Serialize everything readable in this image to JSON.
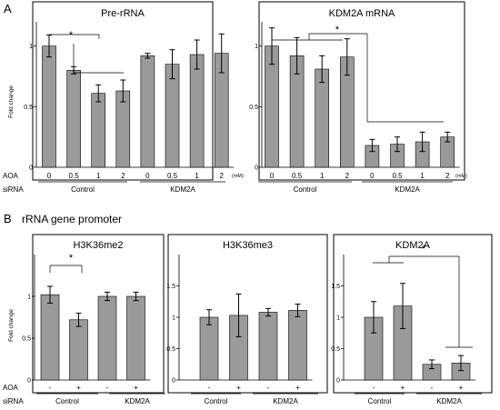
{
  "panel_labels": [
    "A",
    "B"
  ],
  "section_b_title": "rRNA gene promoter",
  "colors": {
    "bar_fill": "#9a9a9a",
    "axis": "#000000",
    "panel_border": "#000000"
  },
  "chart_data": [
    {
      "type": "bar",
      "title": "Pre-rRNA",
      "ylabel": "Fold change",
      "ylim": [
        0,
        1.2
      ],
      "yticks": [
        0,
        0.5,
        1
      ],
      "ytick_labels": [
        "0",
        "0.5",
        "1"
      ],
      "row_labels": [
        "AOA",
        "siRNA"
      ],
      "categories": [
        "0",
        "0.5",
        "1",
        "2",
        "0",
        "0.5",
        "1",
        "2"
      ],
      "unit_label": "(mM)",
      "groups": [
        {
          "label": "Control",
          "indices": [
            0,
            1,
            2,
            3
          ]
        },
        {
          "label": "KDM2A",
          "indices": [
            4,
            5,
            6,
            7
          ]
        }
      ],
      "values": [
        1.0,
        0.8,
        0.61,
        0.63,
        0.92,
        0.85,
        0.93,
        0.94
      ],
      "errors": [
        0.09,
        0.03,
        0.07,
        0.09,
        0.02,
        0.12,
        0.12,
        0.16
      ],
      "significance": [
        "*"
      ]
    },
    {
      "type": "bar",
      "title": "KDM2A mRNA",
      "ylim": [
        0,
        1.2
      ],
      "yticks": [
        0,
        0.5,
        1
      ],
      "ytick_labels": [
        "0",
        "0.5",
        "1"
      ],
      "categories": [
        "0",
        "0.5",
        "1",
        "2",
        "0",
        "0.5",
        "1",
        "2"
      ],
      "unit_label": "(mM)",
      "groups": [
        {
          "label": "Control",
          "indices": [
            0,
            1,
            2,
            3
          ]
        },
        {
          "label": "KDM2A",
          "indices": [
            4,
            5,
            6,
            7
          ]
        }
      ],
      "values": [
        1.0,
        0.92,
        0.81,
        0.91,
        0.18,
        0.19,
        0.21,
        0.25
      ],
      "errors": [
        0.15,
        0.15,
        0.11,
        0.15,
        0.05,
        0.06,
        0.08,
        0.04
      ],
      "significance": [
        "*"
      ]
    },
    {
      "type": "bar",
      "title": "H3K36me2",
      "ylabel": "Fold change",
      "ylim": [
        0,
        1.5
      ],
      "yticks": [
        0,
        0.5,
        1
      ],
      "ytick_labels": [
        "0",
        "0.5",
        "1"
      ],
      "row_labels": [
        "AOA",
        "siRNA"
      ],
      "categories": [
        "-",
        "+",
        "-",
        "+"
      ],
      "groups": [
        {
          "label": "Control",
          "indices": [
            0,
            1
          ]
        },
        {
          "label": "KDM2A",
          "indices": [
            2,
            3
          ]
        }
      ],
      "values": [
        1.02,
        0.72,
        1.0,
        1.0
      ],
      "errors": [
        0.1,
        0.08,
        0.05,
        0.05
      ],
      "significance": [
        "*"
      ]
    },
    {
      "type": "bar",
      "title": "H3K36me3",
      "ylim": [
        0,
        2.0
      ],
      "yticks": [
        0,
        0.5,
        1,
        1.5
      ],
      "ytick_labels": [
        "0",
        "0.5",
        "1",
        "1.5"
      ],
      "categories": [
        "-",
        "+",
        "-",
        "+"
      ],
      "groups": [
        {
          "label": "Control",
          "indices": [
            0,
            1
          ]
        },
        {
          "label": "KDM2A",
          "indices": [
            2,
            3
          ]
        }
      ],
      "values": [
        1.0,
        1.03,
        1.08,
        1.11
      ],
      "errors": [
        0.12,
        0.34,
        0.06,
        0.1
      ],
      "significance": []
    },
    {
      "type": "bar",
      "title": "KDM2A",
      "ylim": [
        0,
        2.0
      ],
      "yticks": [
        0,
        0.5,
        1,
        1.5
      ],
      "ytick_labels": [
        "0",
        "0.5",
        "1",
        "1.5"
      ],
      "categories": [
        "-",
        "+",
        "-",
        "+"
      ],
      "groups": [
        {
          "label": "Control",
          "indices": [
            0,
            1
          ]
        },
        {
          "label": "KDM2A",
          "indices": [
            2,
            3
          ]
        }
      ],
      "values": [
        1.0,
        1.18,
        0.25,
        0.27
      ],
      "errors": [
        0.25,
        0.36,
        0.07,
        0.12
      ],
      "significance": [
        "*"
      ]
    }
  ]
}
